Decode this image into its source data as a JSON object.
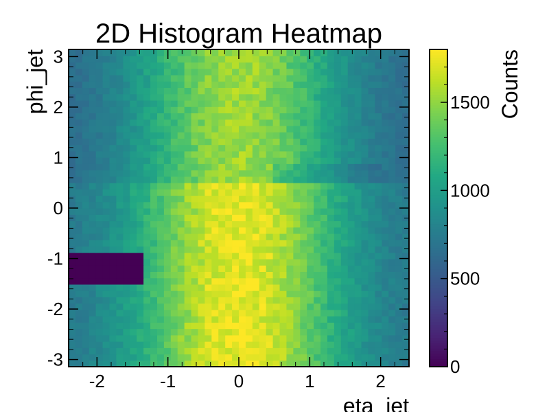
{
  "chart_data": {
    "type": "heatmap",
    "title": "2D Histogram Heatmap",
    "xlabel": "eta_jet",
    "ylabel": "phi_jet",
    "colorbar_label": "Counts",
    "colormap": "viridis",
    "xlim": [
      -2.4,
      2.4
    ],
    "ylim": [
      -3.1416,
      3.1416
    ],
    "zlim": [
      0,
      1800
    ],
    "x_bins": 50,
    "y_bins": 50,
    "x_ticks": [
      -2,
      -1,
      0,
      1,
      2
    ],
    "y_ticks": [
      -3,
      -2,
      -1,
      0,
      1,
      2,
      3
    ],
    "colorbar_ticks": [
      0,
      500,
      1000,
      1500
    ],
    "grid": false,
    "model": {
      "peak": 1750,
      "edge": 650,
      "eta_sigma": 1.05,
      "phi_upper_factor": 0.88,
      "phi_lower_factor": 1.0,
      "phi_step": 0.55,
      "dip_phi": 0.7,
      "dip_depth": 0.1,
      "dip_eta_min": 0.5,
      "dip_eta_max": 2.0,
      "dead_region": {
        "eta_min": -2.4,
        "eta_max": -1.35,
        "phi_min": -1.5,
        "phi_max": -0.85,
        "counts": 0
      }
    }
  }
}
